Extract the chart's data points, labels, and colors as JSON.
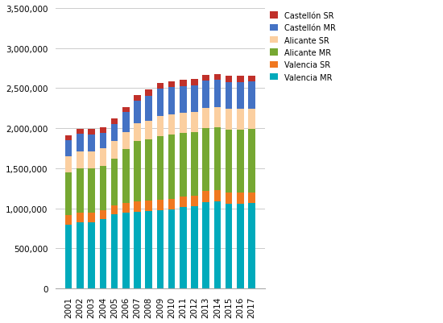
{
  "years": [
    "2001",
    "2002",
    "2003",
    "2004",
    "2005",
    "2006",
    "2007",
    "2008",
    "2009",
    "2010",
    "2011",
    "2012",
    "2013",
    "2014",
    "2015",
    "2016",
    "2017"
  ],
  "series": {
    "Valencia MR": [
      790000,
      820000,
      820000,
      860000,
      920000,
      940000,
      960000,
      970000,
      980000,
      990000,
      1020000,
      1030000,
      1080000,
      1090000,
      1060000,
      1060000,
      1065000
    ],
    "Valencia SR": [
      120000,
      120000,
      125000,
      120000,
      120000,
      125000,
      130000,
      130000,
      130000,
      130000,
      130000,
      130000,
      135000,
      135000,
      135000,
      135000,
      135000
    ],
    "Alicante MR": [
      540000,
      560000,
      550000,
      550000,
      575000,
      670000,
      750000,
      760000,
      790000,
      800000,
      790000,
      790000,
      790000,
      790000,
      790000,
      790000,
      790000
    ],
    "Alicante SR": [
      200000,
      210000,
      215000,
      215000,
      225000,
      220000,
      225000,
      230000,
      250000,
      250000,
      250000,
      250000,
      250000,
      250000,
      255000,
      255000,
      255000
    ],
    "Castellón MR": [
      200000,
      220000,
      210000,
      200000,
      215000,
      250000,
      275000,
      310000,
      340000,
      340000,
      335000,
      335000,
      335000,
      335000,
      335000,
      335000,
      335000
    ],
    "Castellón SR": [
      60000,
      65000,
      70000,
      65000,
      65000,
      60000,
      70000,
      80000,
      75000,
      75000,
      75000,
      75000,
      75000,
      75000,
      75000,
      75000,
      75000
    ]
  },
  "colors": {
    "Valencia MR": "#00AABB",
    "Valencia SR": "#F07820",
    "Alicante MR": "#76A832",
    "Alicante SR": "#FBCFA0",
    "Castellón MR": "#4472C4",
    "Castellón SR": "#C0302A"
  },
  "ylim": [
    0,
    3500000
  ],
  "yticks": [
    0,
    500000,
    1000000,
    1500000,
    2000000,
    2500000,
    3000000,
    3500000
  ],
  "legend_order": [
    "Castellón SR",
    "Castellón MR",
    "Alicante SR",
    "Alicante MR",
    "Valencia SR",
    "Valencia MR"
  ],
  "background_color": "#FFFFFF",
  "grid_color": "#CCCCCC",
  "figsize": [
    5.5,
    4.02
  ],
  "dpi": 100,
  "bar_width": 0.6
}
